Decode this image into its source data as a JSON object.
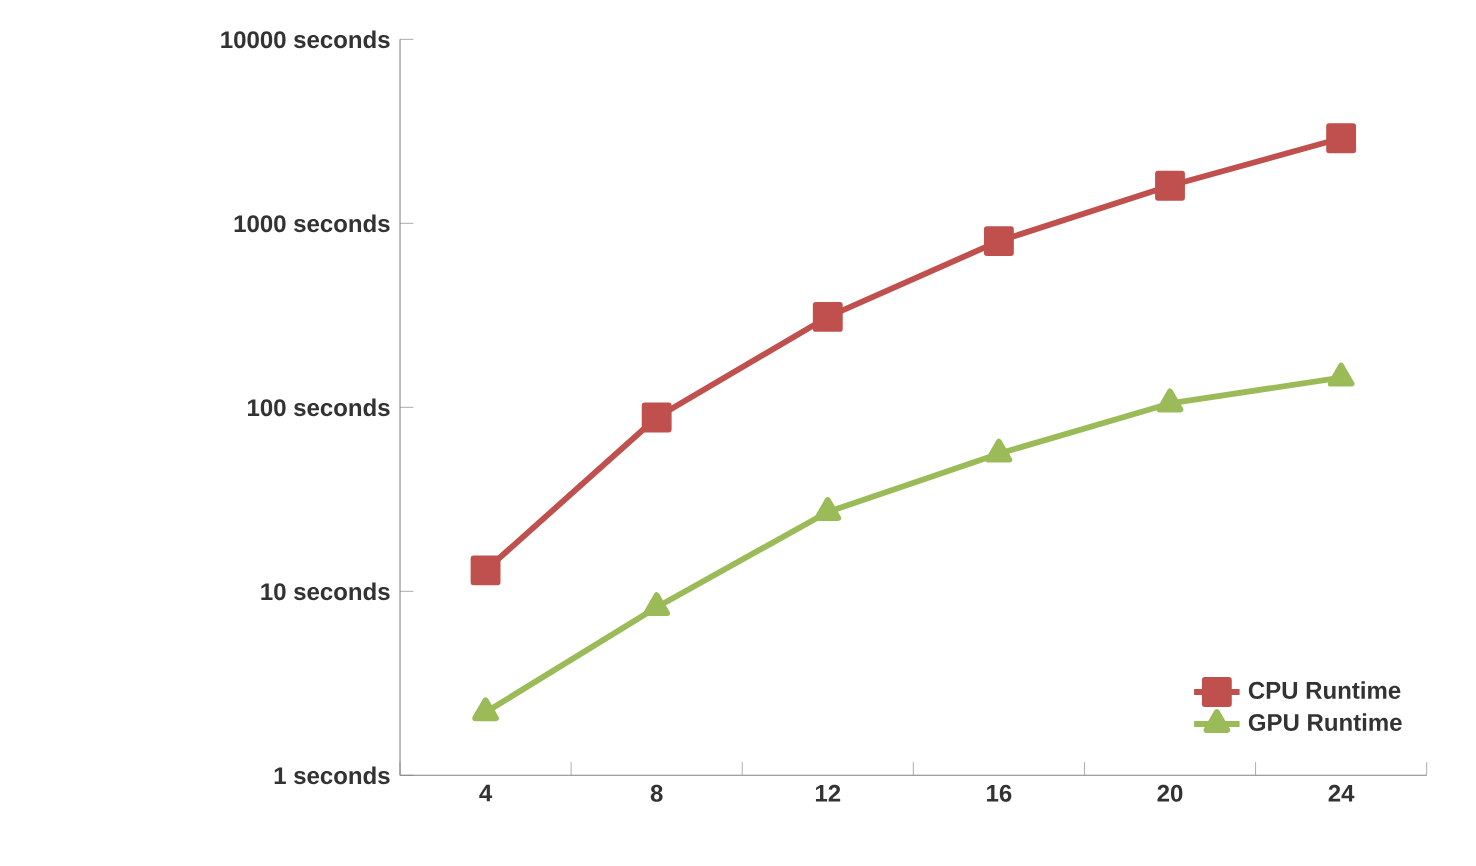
{
  "chart_data": {
    "type": "line",
    "categories": [
      "4",
      "8",
      "12",
      "16",
      "20",
      "24"
    ],
    "series": [
      {
        "name": "CPU Runtime",
        "color": "#c0504d",
        "marker": "square",
        "values": [
          13,
          88,
          310,
          800,
          1600,
          2900
        ]
      },
      {
        "name": "GPU Runtime",
        "color": "#9bbb59",
        "marker": "triangle",
        "values": [
          2.2,
          8.2,
          27,
          56,
          105,
          145
        ]
      }
    ],
    "log": "y",
    "ylim": [
      1,
      10000
    ],
    "yticks": [
      {
        "value": 1,
        "label": "1 seconds"
      },
      {
        "value": 10,
        "label": "10 seconds"
      },
      {
        "value": 100,
        "label": "100 seconds"
      },
      {
        "value": 1000,
        "label": "1000 seconds"
      },
      {
        "value": 10000,
        "label": "10000 seconds"
      }
    ],
    "legend": "bottom right",
    "line_style": "solid"
  }
}
